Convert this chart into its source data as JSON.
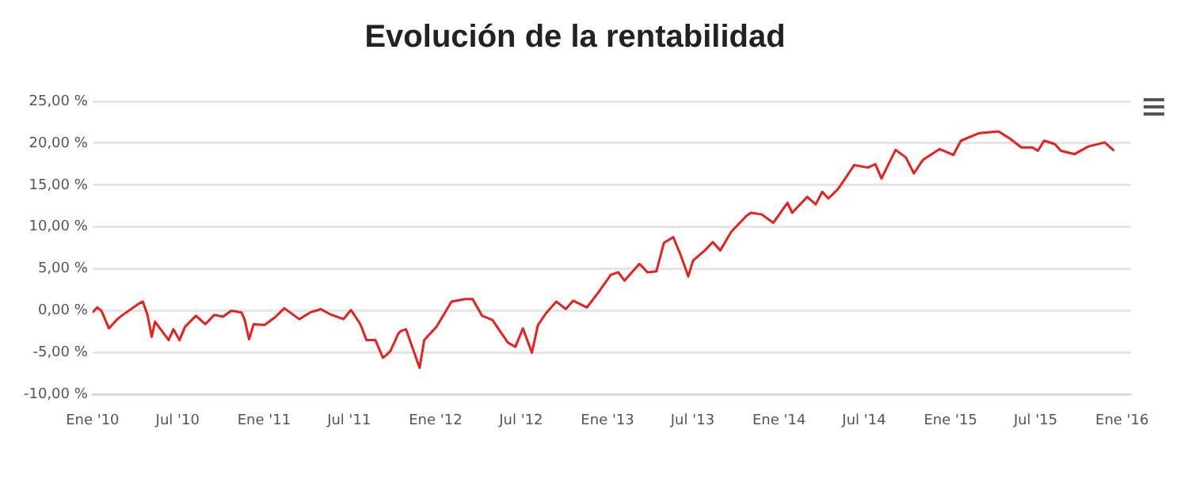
{
  "chart_data": {
    "type": "line",
    "title": "Evolución de la rentabilidad",
    "x": [
      "2010-01-01",
      "2010-01-11",
      "2010-01-20",
      "2010-02-05",
      "2010-02-21",
      "2010-03-06",
      "2010-04-11",
      "2010-04-18",
      "2010-04-28",
      "2010-05-07",
      "2010-05-14",
      "2010-06-12",
      "2010-06-22",
      "2010-07-05",
      "2010-07-17",
      "2010-08-09",
      "2010-08-29",
      "2010-09-17",
      "2010-10-06",
      "2010-10-23",
      "2010-11-14",
      "2010-11-21",
      "2010-11-30",
      "2010-12-10",
      "2011-01-02",
      "2011-01-24",
      "2011-02-13",
      "2011-03-17",
      "2011-04-09",
      "2011-05-02",
      "2011-05-21",
      "2011-06-19",
      "2011-07-05",
      "2011-07-25",
      "2011-08-07",
      "2011-08-26",
      "2011-09-11",
      "2011-09-18",
      "2011-09-27",
      "2011-10-14",
      "2011-10-20",
      "2011-10-30",
      "2011-11-28",
      "2011-12-08",
      "2012-01-03",
      "2012-02-04",
      "2012-03-04",
      "2012-03-20",
      "2012-04-09",
      "2012-05-01",
      "2012-06-03",
      "2012-06-19",
      "2012-07-05",
      "2012-07-24",
      "2012-08-06",
      "2012-08-23",
      "2012-09-14",
      "2012-10-04",
      "2012-10-20",
      "2012-11-18",
      "2012-12-14",
      "2013-01-08",
      "2013-01-24",
      "2013-02-06",
      "2013-03-10",
      "2013-03-27",
      "2013-04-15",
      "2013-05-01",
      "2013-05-21",
      "2013-06-06",
      "2013-06-22",
      "2013-07-02",
      "2013-07-27",
      "2013-08-13",
      "2013-08-29",
      "2013-09-21",
      "2013-10-23",
      "2013-11-02",
      "2013-11-25",
      "2013-12-20",
      "2014-01-19",
      "2014-01-29",
      "2014-03-02",
      "2014-03-20",
      "2014-04-03",
      "2014-04-16",
      "2014-05-06",
      "2014-05-22",
      "2014-06-10",
      "2014-07-09",
      "2014-07-25",
      "2014-08-07",
      "2014-09-06",
      "2014-09-28",
      "2014-10-15",
      "2014-11-03",
      "2014-12-09",
      "2015-01-07",
      "2015-01-23",
      "2015-03-03",
      "2015-04-13",
      "2015-05-06",
      "2015-06-01",
      "2015-06-24",
      "2015-07-06",
      "2015-07-19",
      "2015-08-11",
      "2015-08-24",
      "2015-09-22",
      "2015-10-21",
      "2015-11-25",
      "2015-12-15"
    ],
    "series": [
      {
        "color": "#e8211f",
        "values": [
          -0.2,
          0.4,
          0.0,
          -2.1,
          -1.1,
          -0.5,
          0.9,
          1.1,
          -0.5,
          -3.1,
          -1.3,
          -3.5,
          -2.2,
          -3.5,
          -1.9,
          -0.6,
          -1.6,
          -0.5,
          -0.7,
          0.0,
          -0.2,
          -1.1,
          -3.4,
          -1.6,
          -1.7,
          -0.8,
          0.3,
          -1.0,
          -0.2,
          0.2,
          -0.4,
          -1.0,
          0.1,
          -1.6,
          -3.5,
          -3.5,
          -5.6,
          -5.3,
          -4.8,
          -2.7,
          -2.4,
          -2.2,
          -6.8,
          -3.5,
          -1.9,
          1.1,
          1.4,
          1.4,
          -0.6,
          -1.1,
          -3.8,
          -4.3,
          -2.1,
          -5.0,
          -1.7,
          -0.3,
          1.1,
          0.2,
          1.2,
          0.4,
          2.3,
          4.3,
          4.6,
          3.6,
          5.6,
          4.6,
          4.7,
          8.1,
          8.8,
          6.6,
          4.1,
          6.0,
          7.2,
          8.2,
          7.2,
          9.4,
          11.3,
          11.7,
          11.5,
          10.5,
          12.9,
          11.7,
          13.6,
          12.7,
          14.2,
          13.4,
          14.5,
          15.8,
          17.4,
          17.1,
          17.5,
          15.8,
          19.2,
          18.3,
          16.4,
          18.0,
          19.3,
          18.6,
          20.3,
          21.2,
          21.4,
          20.6,
          19.5,
          19.5,
          19.1,
          20.3,
          19.9,
          19.1,
          18.7,
          19.6,
          20.1,
          19.1
        ]
      }
    ],
    "xlim": [
      "2010-01-01",
      "2016-01-20"
    ],
    "xticks": [
      {
        "value": "2010-01-01",
        "label": "Ene '10"
      },
      {
        "value": "2010-07-01",
        "label": "Jul '10"
      },
      {
        "value": "2011-01-01",
        "label": "Ene '11"
      },
      {
        "value": "2011-07-01",
        "label": "Jul '11"
      },
      {
        "value": "2012-01-01",
        "label": "Ene '12"
      },
      {
        "value": "2012-07-01",
        "label": "Jul '12"
      },
      {
        "value": "2013-01-01",
        "label": "Ene '13"
      },
      {
        "value": "2013-07-01",
        "label": "Jul '13"
      },
      {
        "value": "2014-01-01",
        "label": "Ene '14"
      },
      {
        "value": "2014-07-01",
        "label": "Jul '14"
      },
      {
        "value": "2015-01-01",
        "label": "Ene '15"
      },
      {
        "value": "2015-07-01",
        "label": "Jul '15"
      },
      {
        "value": "2016-01-01",
        "label": "Ene '16"
      }
    ],
    "ylim": [
      -10,
      25
    ],
    "yticks": [
      {
        "value": -10,
        "label": "-10,00 %"
      },
      {
        "value": -5,
        "label": "-5,00 %"
      },
      {
        "value": 0,
        "label": "0,00 %"
      },
      {
        "value": 5,
        "label": "5,00 %"
      },
      {
        "value": 10,
        "label": "10,00 %"
      },
      {
        "value": 15,
        "label": "15,00 %"
      },
      {
        "value": 20,
        "label": "20,00 %"
      },
      {
        "value": 25,
        "label": "25,00 %"
      }
    ],
    "grid": "y",
    "marker": "none",
    "line_style": "solid"
  }
}
